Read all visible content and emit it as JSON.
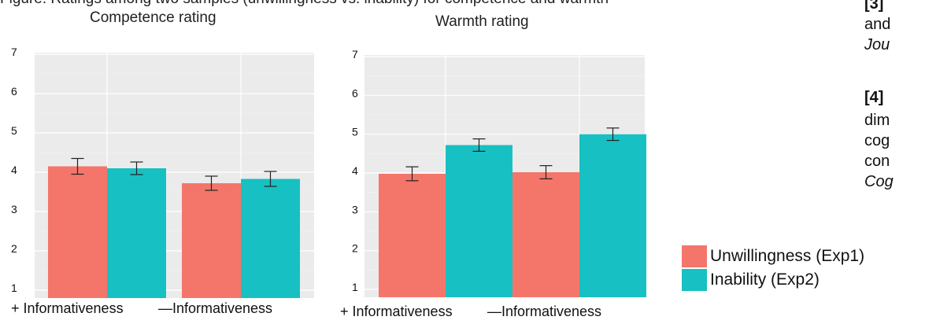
{
  "header": {
    "cut_text": "Figure: Ratings among two samples (unwillingness vs. inability) for competence and warmth"
  },
  "colors": {
    "unwillingness": "#F4766A",
    "inability": "#17C0C2",
    "panel_bg": "#EBEBEB",
    "grid": "#ffffff"
  },
  "chart_data": [
    {
      "type": "bar",
      "title": "Competence rating",
      "categories": [
        "+ Informativeness",
        "—Informativeness"
      ],
      "ylim": [
        1,
        7
      ],
      "yticks": [
        "1",
        "2",
        "3",
        "4",
        "5",
        "6",
        "7"
      ],
      "grid": true,
      "series": [
        {
          "name": "Unwillingness (Exp1)",
          "values": [
            4.15,
            3.72
          ],
          "error": [
            0.2,
            0.18
          ]
        },
        {
          "name": "Inability (Exp2)",
          "values": [
            4.1,
            3.83
          ],
          "error": [
            0.16,
            0.19
          ]
        }
      ]
    },
    {
      "type": "bar",
      "title": "Warmth rating",
      "categories": [
        "+ Informativeness",
        "—Informativeness"
      ],
      "ylim": [
        1,
        7
      ],
      "yticks": [
        "1",
        "2",
        "3",
        "4",
        "5",
        "6",
        "7"
      ],
      "grid": true,
      "series": [
        {
          "name": "Unwillingness (Exp1)",
          "values": [
            3.98,
            4.02
          ],
          "error": [
            0.18,
            0.17
          ]
        },
        {
          "name": "Inability (Exp2)",
          "values": [
            4.72,
            5.0
          ],
          "error": [
            0.16,
            0.16
          ]
        }
      ]
    }
  ],
  "legend": {
    "placement": "right",
    "items": [
      {
        "label": "Unwillingness (Exp1)",
        "color": "#F4766A"
      },
      {
        "label": "Inability (Exp2)",
        "color": "#17C0C2"
      }
    ]
  },
  "references": {
    "ref3_num": "[3]",
    "ref3_line2": "and",
    "ref3_line3": "Jou",
    "ref4_num": "[4]",
    "ref4_line2": "dim",
    "ref4_line3": "cog",
    "ref4_line4": "con",
    "ref4_line5": "Cog"
  }
}
